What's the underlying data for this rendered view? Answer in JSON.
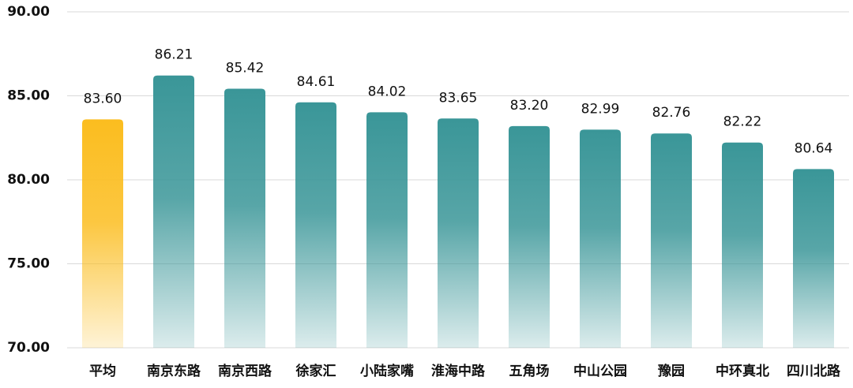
{
  "chart_data": {
    "type": "bar",
    "categories": [
      "平均",
      "南京东路",
      "南京西路",
      "徐家汇",
      "小陆家嘴",
      "淮海中路",
      "五角场",
      "中山公园",
      "豫园",
      "中环真北",
      "四川北路"
    ],
    "values": [
      83.6,
      86.21,
      85.42,
      84.61,
      84.02,
      83.65,
      83.2,
      82.99,
      82.76,
      82.22,
      80.64
    ],
    "value_labels": [
      "83.60",
      "86.21",
      "85.42",
      "84.61",
      "84.02",
      "83.65",
      "83.20",
      "82.99",
      "82.76",
      "82.22",
      "80.64"
    ],
    "colors": [
      "#fbbd1f",
      "#3a9698",
      "#3a9698",
      "#3a9698",
      "#3a9698",
      "#3a9698",
      "#3a9698",
      "#3a9698",
      "#3a9698",
      "#3a9698",
      "#3a9698"
    ],
    "ylim": [
      70,
      90
    ],
    "yticks": [
      {
        "value": 70,
        "label": "70.00"
      },
      {
        "value": 75,
        "label": "75.00"
      },
      {
        "value": 80,
        "label": "80.00"
      },
      {
        "value": 85,
        "label": "85.00"
      },
      {
        "value": 90,
        "label": "90.00"
      }
    ],
    "grid": true
  }
}
